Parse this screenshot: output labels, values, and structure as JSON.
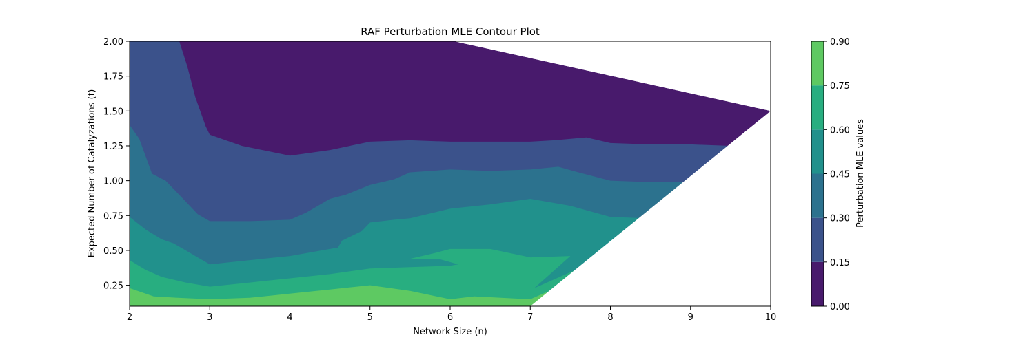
{
  "chart_data": {
    "type": "contour",
    "title": "RAF Perturbation MLE Contour Plot",
    "xlabel": "Network Size (n)",
    "ylabel": "Expected Number of Catalyzations (f)",
    "xlim": [
      2,
      10
    ],
    "ylim": [
      0.1,
      2.0
    ],
    "x_ticks": [
      2,
      3,
      4,
      5,
      6,
      7,
      8,
      9,
      10
    ],
    "y_ticks": [
      0.25,
      0.5,
      0.75,
      1.0,
      1.25,
      1.5,
      1.75,
      2.0
    ],
    "x_tick_labels": [
      "2",
      "3",
      "4",
      "5",
      "6",
      "7",
      "8",
      "9",
      "10"
    ],
    "y_tick_labels": [
      "0.25",
      "0.50",
      "0.75",
      "1.00",
      "1.25",
      "1.50",
      "1.75",
      "2.00"
    ],
    "colorbar": {
      "label": "Perturbation MLE values",
      "levels": [
        0.0,
        0.15,
        0.3,
        0.45,
        0.6,
        0.75,
        0.9
      ],
      "tick_labels": [
        "0.00",
        "0.15",
        "0.30",
        "0.45",
        "0.60",
        "0.75",
        "0.90"
      ],
      "colors": [
        "#481a6c",
        "#3b528b",
        "#2c728e",
        "#21918c",
        "#28ae80",
        "#5ec962",
        "#cde11d"
      ]
    },
    "domain_boundary": [
      [
        2,
        2.0
      ],
      [
        6.05,
        2.0
      ],
      [
        10,
        1.5
      ],
      [
        7.0,
        0.1
      ],
      [
        2,
        0.1
      ]
    ],
    "contour_levels": [
      {
        "level": 0.15,
        "points": [
          [
            2.62,
            2.0
          ],
          [
            2.72,
            1.82
          ],
          [
            2.82,
            1.6
          ],
          [
            2.95,
            1.39
          ],
          [
            3.0,
            1.33
          ],
          [
            3.4,
            1.25
          ],
          [
            4.0,
            1.18
          ],
          [
            4.5,
            1.22
          ],
          [
            5.0,
            1.28
          ],
          [
            5.5,
            1.29
          ],
          [
            6.0,
            1.28
          ],
          [
            6.5,
            1.28
          ],
          [
            7.0,
            1.28
          ],
          [
            7.3,
            1.29
          ],
          [
            7.7,
            1.31
          ],
          [
            8.0,
            1.27
          ],
          [
            8.5,
            1.26
          ],
          [
            9.0,
            1.26
          ],
          [
            9.5,
            1.25
          ]
        ]
      },
      {
        "level": 0.3,
        "points": [
          [
            2.0,
            1.4
          ],
          [
            2.12,
            1.3
          ],
          [
            2.28,
            1.05
          ],
          [
            2.45,
            1.0
          ],
          [
            2.65,
            0.88
          ],
          [
            2.85,
            0.76
          ],
          [
            3.0,
            0.71
          ],
          [
            3.5,
            0.71
          ],
          [
            4.0,
            0.72
          ],
          [
            4.2,
            0.77
          ],
          [
            4.5,
            0.87
          ],
          [
            4.7,
            0.9
          ],
          [
            5.0,
            0.97
          ],
          [
            5.3,
            1.01
          ],
          [
            5.5,
            1.06
          ],
          [
            6.0,
            1.08
          ],
          [
            6.5,
            1.07
          ],
          [
            7.0,
            1.08
          ],
          [
            7.35,
            1.1
          ],
          [
            7.6,
            1.06
          ],
          [
            8.0,
            1.0
          ],
          [
            8.5,
            0.99
          ],
          [
            9.0,
            0.99
          ]
        ]
      },
      {
        "level": 0.45,
        "points": [
          [
            2.0,
            0.74
          ],
          [
            2.2,
            0.65
          ],
          [
            2.4,
            0.58
          ],
          [
            2.55,
            0.55
          ],
          [
            2.7,
            0.5
          ],
          [
            2.85,
            0.45
          ],
          [
            3.0,
            0.4
          ],
          [
            3.5,
            0.43
          ],
          [
            4.0,
            0.46
          ],
          [
            4.4,
            0.5
          ],
          [
            4.6,
            0.52
          ],
          [
            4.65,
            0.57
          ],
          [
            4.9,
            0.64
          ],
          [
            5.0,
            0.7
          ],
          [
            5.3,
            0.72
          ],
          [
            5.5,
            0.73
          ],
          [
            6.0,
            0.8
          ],
          [
            6.5,
            0.83
          ],
          [
            7.0,
            0.87
          ],
          [
            7.5,
            0.82
          ],
          [
            8.0,
            0.74
          ],
          [
            8.45,
            0.73
          ]
        ]
      },
      {
        "level": 0.6,
        "points": [
          [
            2.0,
            0.43
          ],
          [
            2.2,
            0.36
          ],
          [
            2.4,
            0.31
          ],
          [
            2.7,
            0.27
          ],
          [
            3.0,
            0.24
          ],
          [
            3.5,
            0.27
          ],
          [
            4.0,
            0.3
          ],
          [
            4.5,
            0.33
          ],
          [
            5.0,
            0.37
          ],
          [
            5.5,
            0.38
          ],
          [
            6.0,
            0.39
          ],
          [
            6.1,
            0.4
          ],
          [
            5.85,
            0.44
          ],
          [
            5.5,
            0.44
          ],
          [
            5.8,
            0.48
          ],
          [
            6.0,
            0.51
          ],
          [
            6.5,
            0.51
          ],
          [
            7.0,
            0.45
          ],
          [
            7.5,
            0.46
          ],
          [
            7.05,
            0.23
          ],
          [
            7.8,
            0.42
          ],
          [
            8.0,
            0.51
          ]
        ]
      },
      {
        "level": 0.75,
        "points": [
          [
            2.0,
            0.23
          ],
          [
            2.3,
            0.17
          ],
          [
            2.6,
            0.16
          ],
          [
            3.0,
            0.15
          ],
          [
            3.5,
            0.16
          ],
          [
            4.0,
            0.19
          ],
          [
            4.5,
            0.22
          ],
          [
            5.0,
            0.25
          ],
          [
            5.5,
            0.21
          ],
          [
            6.0,
            0.15
          ],
          [
            6.3,
            0.17
          ],
          [
            7.0,
            0.15
          ],
          [
            7.2,
            0.2
          ]
        ]
      }
    ]
  }
}
